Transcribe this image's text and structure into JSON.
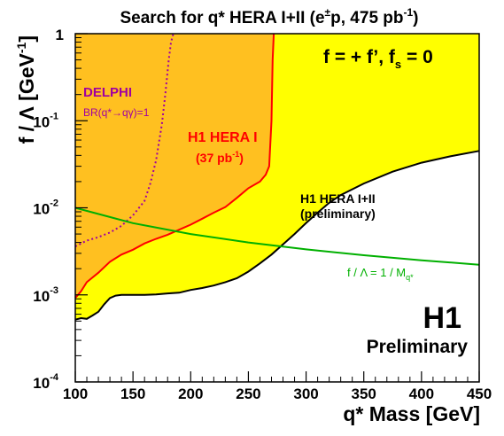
{
  "chart_data": {
    "type": "area",
    "title": {
      "main": "Search for q* HERA I+II (e",
      "sup1": "±",
      "mid": "p, 475 pb",
      "sup2": "-1",
      "end": ")"
    },
    "xlabel": "q* Mass [GeV]",
    "ylabel": {
      "main": "f / Λ [GeV",
      "sup": "-1",
      "end": "]"
    },
    "xlim": [
      100,
      450
    ],
    "ylim": [
      0.0001,
      1
    ],
    "yscale": "log",
    "grid": false,
    "x_ticks": [
      "100",
      "150",
      "200",
      "250",
      "300",
      "350",
      "400",
      "450"
    ],
    "y_ticks": [
      {
        "base": "10",
        "exp": "-4"
      },
      {
        "base": "10",
        "exp": "-3"
      },
      {
        "base": "10",
        "exp": "-2"
      },
      {
        "base": "10",
        "exp": "-1"
      },
      {
        "base": "1",
        "exp": ""
      }
    ],
    "coupling_label": {
      "main": "f = + f’, f",
      "sub": "s",
      "end": " = 0"
    },
    "experiment_label": "H1",
    "status_label": "Preliminary",
    "series": [
      {
        "name": "H1 HERA I+II (preliminary)",
        "style": "fill",
        "fill_color": "#ffff00",
        "stroke_color": "#000000",
        "x": [
          100,
          105,
          110,
          115,
          120,
          125,
          130,
          135,
          140,
          145,
          150,
          160,
          170,
          180,
          190,
          200,
          210,
          220,
          230,
          240,
          250,
          260,
          270,
          280,
          290,
          300,
          310,
          320,
          330,
          350,
          375,
          400,
          425,
          450
        ],
        "y": [
          0.00052,
          0.00054,
          0.00053,
          0.00058,
          0.00064,
          0.00078,
          0.00092,
          0.00098,
          0.001,
          0.001,
          0.001,
          0.001,
          0.00101,
          0.00104,
          0.00106,
          0.00114,
          0.0012,
          0.00128,
          0.0014,
          0.00155,
          0.00185,
          0.0023,
          0.0029,
          0.0038,
          0.005,
          0.0067,
          0.0088,
          0.0114,
          0.014,
          0.019,
          0.026,
          0.033,
          0.039,
          0.045
        ]
      },
      {
        "name": "H1 HERA I (37 pb-1)",
        "label_line1": "H1 HERA I",
        "label_line2_main": "(37 pb",
        "label_line2_sup": "-1",
        "label_line2_end": ")",
        "style": "fill",
        "fill_color": "#ffc020",
        "stroke_color": "#ff0000",
        "x": [
          100,
          105,
          110,
          120,
          130,
          140,
          150,
          160,
          170,
          180,
          190,
          200,
          210,
          220,
          230,
          240,
          250,
          260,
          265,
          268,
          270,
          271,
          272
        ],
        "y": [
          0.00092,
          0.0011,
          0.0014,
          0.0018,
          0.0024,
          0.0029,
          0.0033,
          0.0039,
          0.0044,
          0.0049,
          0.0056,
          0.0064,
          0.0075,
          0.0088,
          0.0102,
          0.013,
          0.0168,
          0.02,
          0.024,
          0.03,
          0.1,
          0.5,
          1.0
        ]
      },
      {
        "name": "DELPHI",
        "annotation": "BR(q*→qγ)=1",
        "style": "dotted",
        "stroke_color": "#a000a0",
        "x": [
          100,
          110,
          120,
          130,
          140,
          150,
          160,
          165,
          170,
          175,
          178,
          181,
          183,
          185
        ],
        "y": [
          0.0036,
          0.0042,
          0.0046,
          0.0052,
          0.0062,
          0.0082,
          0.012,
          0.019,
          0.035,
          0.09,
          0.2,
          0.5,
          0.8,
          1.0
        ]
      },
      {
        "name": "f / Λ = 1 / Mq*",
        "label_main": "f / Λ  = 1 / M",
        "label_sub": "q*",
        "style": "line",
        "stroke_color": "#00b000",
        "x": [
          100,
          150,
          200,
          250,
          300,
          350,
          400,
          450
        ],
        "y": [
          0.01,
          0.006667,
          0.005,
          0.004,
          0.003333,
          0.002857,
          0.0025,
          0.002222
        ]
      }
    ]
  }
}
